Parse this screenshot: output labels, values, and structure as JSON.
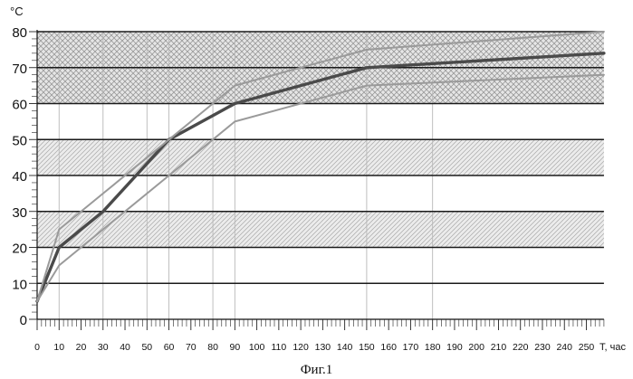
{
  "chart_data": {
    "type": "line",
    "title": "",
    "caption": "Фиг.1",
    "xlabel": "T, час",
    "ylabel": "°C",
    "xlim": [
      0,
      258
    ],
    "ylim": [
      0,
      80
    ],
    "x_ticks": [
      0,
      10,
      20,
      30,
      40,
      50,
      60,
      70,
      80,
      90,
      100,
      110,
      120,
      130,
      140,
      150,
      160,
      170,
      180,
      190,
      200,
      210,
      220,
      230,
      240,
      250
    ],
    "y_ticks": [
      0,
      10,
      20,
      30,
      40,
      50,
      60,
      70,
      80
    ],
    "x_tick_labels": [
      "0",
      "10",
      "20",
      "30",
      "40",
      "50",
      "60",
      "70",
      "80",
      "90",
      "100",
      "110",
      "120",
      "130",
      "140",
      "150",
      "160",
      "170",
      "180",
      "190",
      "200",
      "210",
      "220",
      "230",
      "240",
      "250"
    ],
    "y_tick_labels": [
      "0",
      "10",
      "20",
      "30",
      "40",
      "50",
      "60",
      "70",
      "80"
    ],
    "shaded_bands": [
      {
        "from": 60,
        "to": 80,
        "pattern": "crosshatch"
      },
      {
        "from": 40,
        "to": 50,
        "pattern": "hatch"
      },
      {
        "from": 20,
        "to": 30,
        "pattern": "hatch"
      }
    ],
    "vertical_gridlines_x": [
      10,
      30,
      50,
      60,
      80,
      90,
      150,
      180
    ],
    "grid": true,
    "series": [
      {
        "values": [
          [
            0,
            5
          ],
          [
            10,
            20
          ],
          [
            30,
            30
          ],
          [
            60,
            50
          ],
          [
            90,
            60
          ],
          [
            150,
            70
          ],
          [
            258,
            74
          ]
        ],
        "color": "#4a4a4a",
        "style": "thick"
      },
      {
        "values": [
          [
            0,
            5
          ],
          [
            10,
            25
          ],
          [
            30,
            35
          ],
          [
            60,
            50
          ],
          [
            90,
            65
          ],
          [
            150,
            75
          ],
          [
            258,
            80
          ]
        ],
        "color": "#9a9a9a",
        "style": "thin"
      },
      {
        "values": [
          [
            0,
            5
          ],
          [
            10,
            15
          ],
          [
            30,
            25
          ],
          [
            60,
            40
          ],
          [
            90,
            55
          ],
          [
            150,
            65
          ],
          [
            258,
            68
          ]
        ],
        "color": "#9a9a9a",
        "style": "thin"
      }
    ]
  }
}
